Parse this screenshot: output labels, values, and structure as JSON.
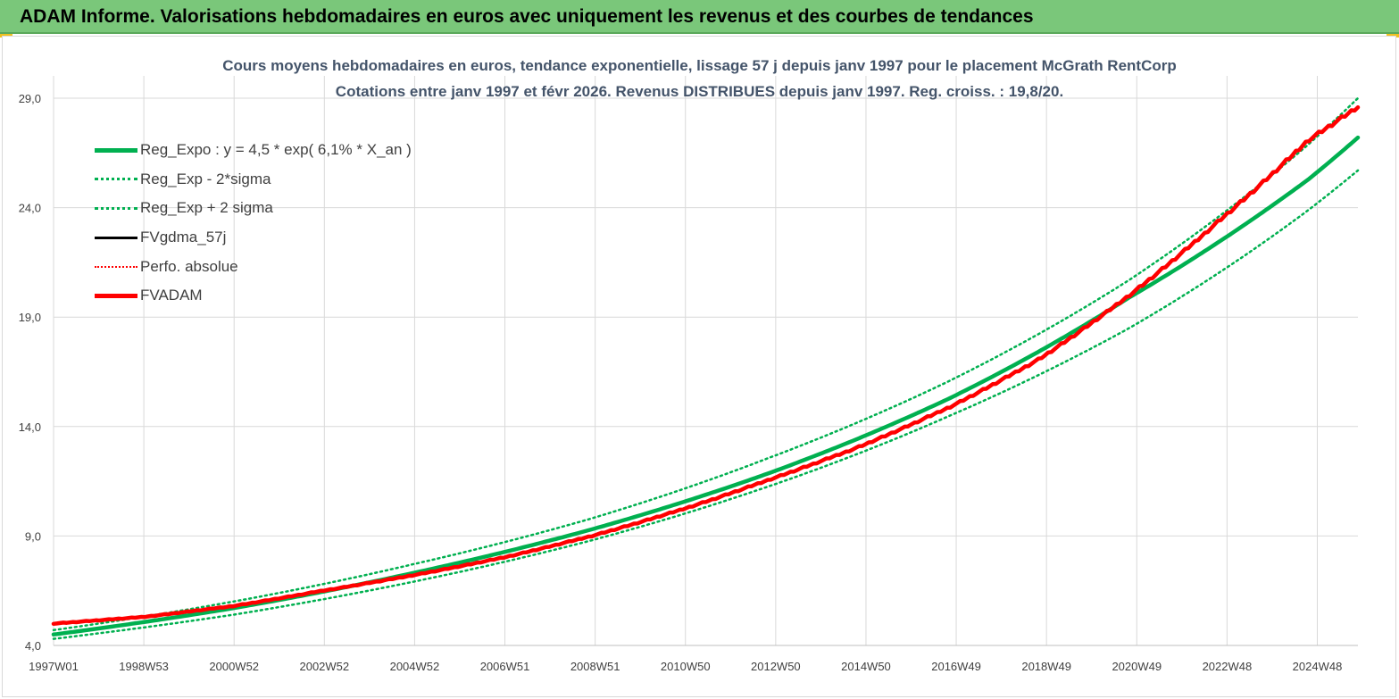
{
  "banner": {
    "title": "ADAM Informe. Valorisations hebdomadaires en euros avec uniquement les revenus et des courbes de tendances"
  },
  "colors": {
    "banner_bg": "#7ac77a",
    "reg_expo": "#00b050",
    "fvadam": "#ff0000",
    "fvgdma": "#000000",
    "perfo": "#ff0000",
    "grid": "#d9d9d9",
    "title": "#44546a"
  },
  "chart_data": {
    "type": "line",
    "title": "Cours moyens hebdomadaires en euros, tendance exponentielle, lissage 57 j depuis janv 1997 pour le placement McGrath RentCorp",
    "subtitle": "Cotations entre janv 1997 et févr 2026. Revenus DISTRIBUES depuis janv 1997. Reg. croiss. : 19,8/20.",
    "ylim": [
      4.0,
      29.0
    ],
    "yticks": [
      "4,0",
      "9,0",
      "14,0",
      "19,0",
      "24,0",
      "29,0"
    ],
    "xticks": [
      "1997W01",
      "1998W53",
      "2000W52",
      "2002W52",
      "2004W52",
      "2006W51",
      "2008W51",
      "2010W50",
      "2012W50",
      "2014W50",
      "2016W49",
      "2018W49",
      "2020W49",
      "2022W48",
      "2024W48"
    ],
    "x_start_year": 1997.0,
    "x_end_year": 2026.1,
    "legend_position": "top-left",
    "grid": true,
    "series": [
      {
        "name": "Reg_Expo : y = 4,5 * exp( 6,1% *  X_an )",
        "style": "solid-thick",
        "color": "#00b050",
        "x": [
          1997,
          2001,
          2005,
          2009,
          2013,
          2017,
          2021,
          2025,
          2026.1
        ],
        "values": [
          4.5,
          5.7,
          7.3,
          9.3,
          11.9,
          15.3,
          19.9,
          25.3,
          27.2
        ]
      },
      {
        "name": "Reg_Exp - 2*sigma",
        "style": "dotted",
        "color": "#00b050",
        "x": [
          1997,
          2001,
          2005,
          2009,
          2013,
          2017,
          2021,
          2025,
          2026.1
        ],
        "values": [
          4.3,
          5.4,
          6.9,
          8.8,
          11.3,
          14.5,
          18.5,
          23.9,
          25.7
        ]
      },
      {
        "name": "Reg_Exp + 2 sigma",
        "style": "dotted",
        "color": "#00b050",
        "x": [
          1997,
          2001,
          2005,
          2009,
          2013,
          2017,
          2021,
          2025,
          2026.1
        ],
        "values": [
          4.7,
          6.0,
          7.7,
          9.8,
          12.6,
          16.1,
          20.7,
          26.9,
          29.0
        ]
      },
      {
        "name": "FVgdma_57j",
        "style": "solid",
        "color": "#000000",
        "x": [
          1997,
          1999,
          2001,
          2003,
          2005,
          2007,
          2009,
          2011,
          2013,
          2015,
          2017,
          2019,
          2021,
          2023,
          2025,
          2026.1
        ],
        "values": [
          5.0,
          5.3,
          5.8,
          6.5,
          7.2,
          8.0,
          9.0,
          10.2,
          11.6,
          13.1,
          14.9,
          17.1,
          20.0,
          23.4,
          27.1,
          28.6
        ]
      },
      {
        "name": "Perfo. absolue",
        "style": "dotted",
        "color": "#ff0000",
        "x": [],
        "values": []
      },
      {
        "name": "FVADAM",
        "style": "solid-thick",
        "color": "#ff0000",
        "x": [
          1997,
          1999,
          2001,
          2003,
          2005,
          2007,
          2009,
          2011,
          2013,
          2015,
          2017,
          2019,
          2021,
          2023,
          2025,
          2026.1
        ],
        "values": [
          5.0,
          5.3,
          5.8,
          6.5,
          7.2,
          8.0,
          9.0,
          10.2,
          11.6,
          13.1,
          14.9,
          17.1,
          20.0,
          23.4,
          27.1,
          28.6
        ]
      }
    ]
  }
}
